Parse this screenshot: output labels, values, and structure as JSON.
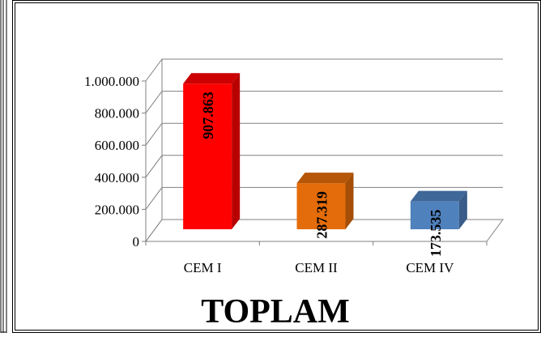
{
  "chart_data": {
    "type": "bar",
    "style": "3d-column",
    "title": "TOPLAM",
    "categories": [
      "CEM I",
      "CEM II",
      "CEM IV"
    ],
    "values": [
      907863,
      287319,
      173535
    ],
    "value_labels": [
      "907.863",
      "287.319",
      "173.535"
    ],
    "ylim": [
      0,
      1000000
    ],
    "yticks": [
      0,
      200000,
      400000,
      600000,
      800000,
      1000000
    ],
    "ytick_labels": [
      "0",
      "200.000",
      "400.000",
      "600.000",
      "800.000",
      "1.000.000"
    ],
    "grid": true,
    "legend": "none",
    "colors": {
      "CEM I": "#ff0000",
      "CEM II": "#e46c0a",
      "CEM IV": "#4f81bd"
    }
  }
}
